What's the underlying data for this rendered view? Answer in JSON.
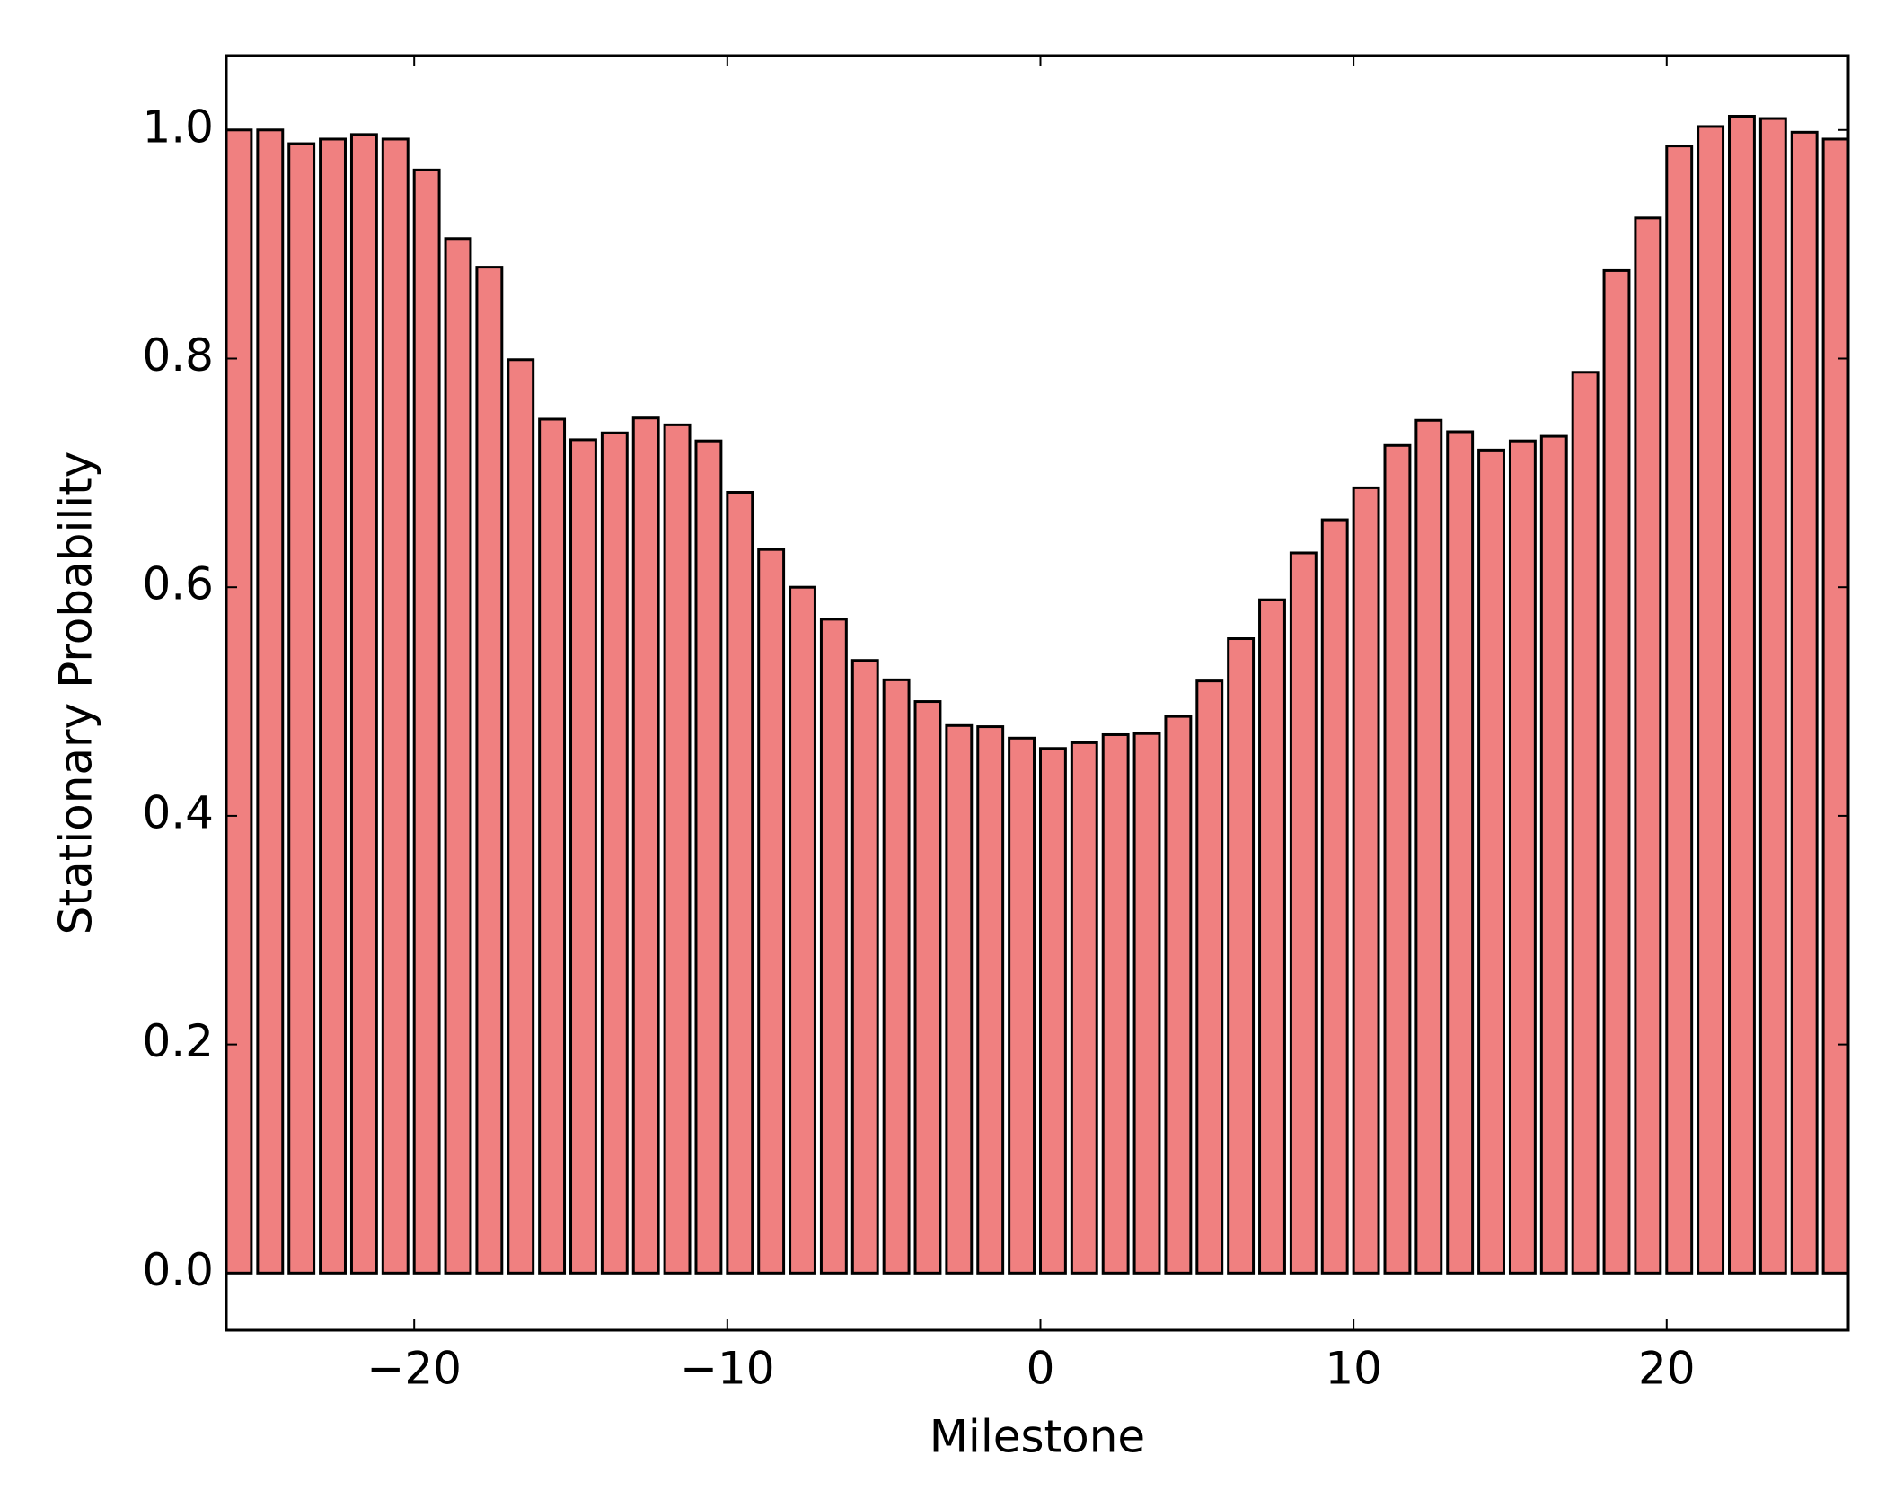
{
  "chart_data": {
    "type": "bar",
    "xlabel": "Milestone",
    "ylabel": "Stationary Probability",
    "x": [
      -26,
      -25,
      -24,
      -23,
      -22,
      -21,
      -20,
      -19,
      -18,
      -17,
      -16,
      -15,
      -14,
      -13,
      -12,
      -11,
      -10,
      -9,
      -8,
      -7,
      -6,
      -5,
      -4,
      -3,
      -2,
      -1,
      0,
      1,
      2,
      3,
      4,
      5,
      6,
      7,
      8,
      9,
      10,
      11,
      12,
      13,
      14,
      15,
      16,
      17,
      18,
      19,
      20,
      21,
      22,
      23,
      24,
      25
    ],
    "values": [
      1.0,
      1.0,
      0.988,
      0.992,
      0.996,
      0.992,
      0.965,
      0.905,
      0.88,
      0.799,
      0.747,
      0.729,
      0.735,
      0.748,
      0.742,
      0.728,
      0.683,
      0.633,
      0.6,
      0.572,
      0.536,
      0.519,
      0.5,
      0.479,
      0.478,
      0.468,
      0.459,
      0.464,
      0.471,
      0.472,
      0.487,
      0.518,
      0.555,
      0.589,
      0.63,
      0.659,
      0.687,
      0.724,
      0.746,
      0.736,
      0.72,
      0.728,
      0.732,
      0.788,
      0.877,
      0.923,
      0.986,
      1.003,
      1.012,
      1.01,
      0.998,
      0.992
    ],
    "color": "#f08080",
    "edgecolor": "#000000",
    "xlim": [
      -26,
      25.8
    ],
    "ylim": [
      -0.05,
      1.065
    ],
    "xticks": [
      {
        "value": -20,
        "label": "−20"
      },
      {
        "value": -10,
        "label": "−10"
      },
      0,
      10,
      20
    ],
    "yticks": [
      {
        "value": 0,
        "label": "0.0"
      },
      {
        "value": 0.2,
        "label": "0.2"
      },
      {
        "value": 0.4,
        "label": "0.4"
      },
      {
        "value": 0.6,
        "label": "0.6"
      },
      {
        "value": 0.8,
        "label": "0.8"
      },
      {
        "value": 1.0,
        "label": "1.0"
      }
    ],
    "grid": false
  }
}
